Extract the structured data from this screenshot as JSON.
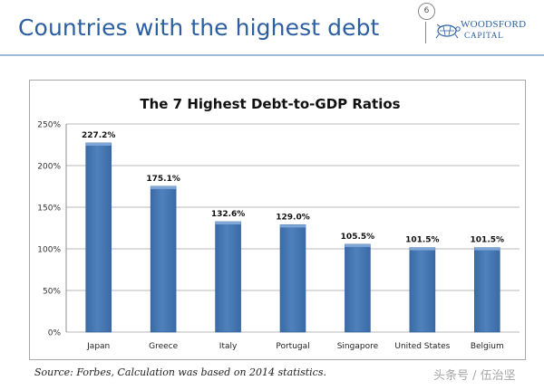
{
  "slide": {
    "title": "Countries with the highest debt",
    "page_number": "6"
  },
  "logo": {
    "name": "WOODSFORD",
    "sub": "CAPITAL"
  },
  "source_note": "Source: Forbes, Calculation was based on 2014 statistics.",
  "watermark": "头条号 / 伍治坚",
  "colors": {
    "accent": "#2c5fa0",
    "bar": "#4f81bd",
    "bar_dark": "#3a6ba5",
    "gridline": "#a0a0a0"
  },
  "chart_data": {
    "type": "bar",
    "title": "The 7 Highest Debt-to-GDP Ratios",
    "categories": [
      "Japan",
      "Greece",
      "Italy",
      "Portugal",
      "Singapore",
      "United States",
      "Belgium"
    ],
    "values": [
      227.2,
      175.1,
      132.6,
      129.0,
      105.5,
      101.5,
      101.5
    ],
    "data_labels": [
      "227.2%",
      "175.1%",
      "132.6%",
      "129.0%",
      "105.5%",
      "101.5%",
      "101.5%"
    ],
    "y_ticks": [
      0,
      50,
      100,
      150,
      200,
      250
    ],
    "y_tick_labels": [
      "0%",
      "50%",
      "100%",
      "150%",
      "200%",
      "250%"
    ],
    "ylim": [
      0,
      250
    ],
    "xlabel": "",
    "ylabel": "",
    "grid": true,
    "legend": "none"
  }
}
